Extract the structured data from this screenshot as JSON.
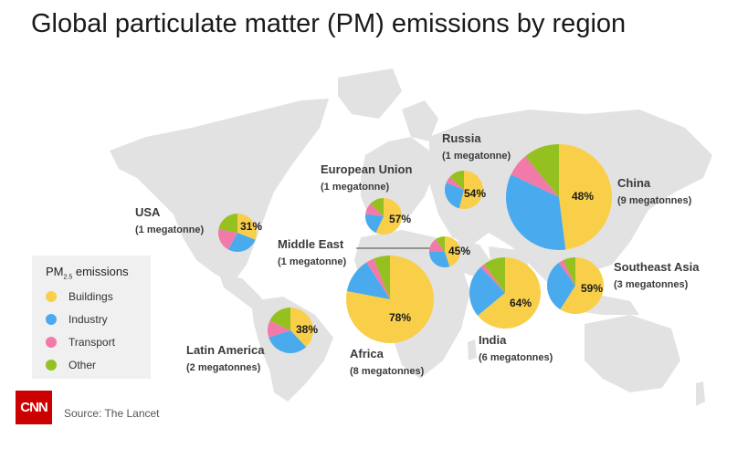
{
  "title": "Global particulate matter (PM) emissions by region",
  "colors": {
    "buildings": "#f9cf4a",
    "industry": "#4aaaee",
    "transport": "#f27aa8",
    "other": "#94c11f",
    "map": "#e2e2e2",
    "brand": "#cc0000"
  },
  "legend": {
    "title_main": "PM",
    "title_sub": "2.5",
    "title_suffix": " emissions",
    "items": [
      {
        "label": "Buildings",
        "color": "#f9cf4a"
      },
      {
        "label": "Industry",
        "color": "#4aaaee"
      },
      {
        "label": "Transport",
        "color": "#f27aa8"
      },
      {
        "label": "Other",
        "color": "#94c11f"
      }
    ]
  },
  "chart_data": {
    "type": "pie",
    "categories": [
      "Buildings",
      "Industry",
      "Transport",
      "Other"
    ],
    "regions": [
      {
        "name": "USA",
        "emissions": "(1 megatonne)",
        "label": "31%",
        "shares": [
          31,
          27,
          20,
          22
        ]
      },
      {
        "name": "European Union",
        "emissions": "(1 megatonne)",
        "label": "57%",
        "shares": [
          57,
          20,
          10,
          13
        ]
      },
      {
        "name": "Russia",
        "emissions": "(1 megatonne)",
        "label": "54%",
        "shares": [
          54,
          27,
          6,
          13
        ]
      },
      {
        "name": "Middle East",
        "emissions": "(1 megatonne)",
        "label": "45%",
        "shares": [
          45,
          30,
          15,
          10
        ]
      },
      {
        "name": "China",
        "emissions": "(9 megatonnes)",
        "label": "48%",
        "shares": [
          48,
          34,
          7,
          11
        ]
      },
      {
        "name": "Africa",
        "emissions": "(8 megatonnes)",
        "label": "78%",
        "shares": [
          78,
          13,
          3,
          6
        ]
      },
      {
        "name": "India",
        "emissions": "(6 megatonnes)",
        "label": "64%",
        "shares": [
          64,
          24,
          2,
          10
        ]
      },
      {
        "name": "Southeast Asia",
        "emissions": "(3 megatonnes)",
        "label": "59%",
        "shares": [
          59,
          31,
          3,
          7
        ]
      },
      {
        "name": "Latin America",
        "emissions": "(2 megatonnes)",
        "label": "38%",
        "shares": [
          38,
          32,
          12,
          18
        ]
      }
    ]
  },
  "footer": {
    "logo": "CNN",
    "source": "Source:  The Lancet"
  }
}
